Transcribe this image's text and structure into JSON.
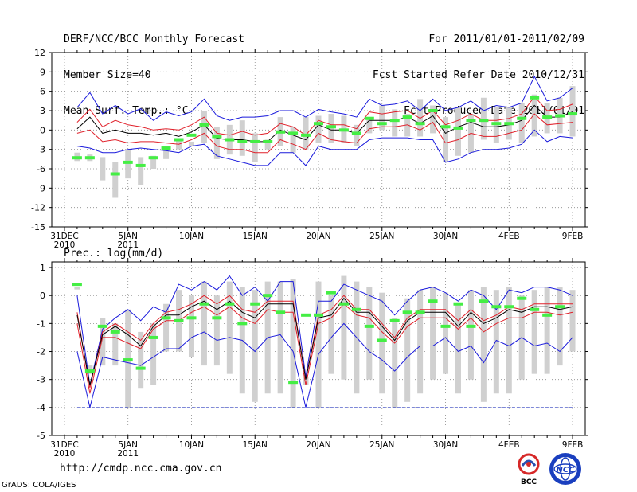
{
  "header": {
    "left": [
      "DERF/NCC/BCC Monthly Forecast",
      "Member Size=40",
      "Mean Surf. Temp.: °C"
    ],
    "right": [
      "For 2011/01/01-2011/02/09",
      "Fcst Started Refer Date 2010/12/31",
      "Fcst Produced Date 2011/01/01"
    ]
  },
  "footer": {
    "url": "http://cmdp.ncc.cma.gov.cn",
    "credit": "GrADS: COLA/IGES",
    "logo_left": "BCC",
    "logo_right": "NCC"
  },
  "colors": {
    "ensemble_mean": "#000000",
    "spread_inner": "#e0202a",
    "spread_outer": "#1a1adc",
    "observed": "#44ee44",
    "box": "#d0d0d0",
    "min_line": "#3040c0"
  },
  "chart_data": [
    {
      "type": "line",
      "title": "Mean Surf. Temp.: °C",
      "x_labels": [
        {
          "day": 0,
          "label": "31DEC",
          "sub": "2010"
        },
        {
          "day": 5,
          "label": "5JAN",
          "sub": "2011"
        },
        {
          "day": 10,
          "label": "10JAN",
          "sub": ""
        },
        {
          "day": 15,
          "label": "15JAN",
          "sub": ""
        },
        {
          "day": 20,
          "label": "20JAN",
          "sub": ""
        },
        {
          "day": 25,
          "label": "25JAN",
          "sub": ""
        },
        {
          "day": 30,
          "label": "30JAN",
          "sub": ""
        },
        {
          "day": 35,
          "label": "4FEB",
          "sub": ""
        },
        {
          "day": 40,
          "label": "9FEB",
          "sub": ""
        }
      ],
      "xlim": [
        -1,
        41
      ],
      "ylim": [
        -15,
        12
      ],
      "yticks": [
        12,
        9,
        6,
        3,
        0,
        -3,
        -6,
        -9,
        -12,
        -15
      ],
      "days": [
        1,
        2,
        3,
        4,
        5,
        6,
        7,
        8,
        9,
        10,
        11,
        12,
        13,
        14,
        15,
        16,
        17,
        18,
        19,
        20,
        21,
        22,
        23,
        24,
        25,
        26,
        27,
        28,
        29,
        30,
        31,
        32,
        33,
        34,
        35,
        36,
        37,
        38,
        39,
        40
      ],
      "series": [
        {
          "name": "max",
          "values": [
            3.5,
            5.8,
            2.5,
            3.8,
            2.5,
            3.3,
            1.5,
            2.8,
            2.2,
            2.8,
            4.8,
            2.2,
            1.5,
            2.0,
            2.0,
            2.2,
            3.0,
            3.0,
            2.0,
            3.2,
            2.8,
            2.5,
            2.0,
            4.8,
            3.8,
            4.0,
            4.5,
            3.0,
            4.8,
            3.0,
            3.5,
            4.5,
            3.0,
            3.8,
            3.5,
            4.2,
            8.3,
            4.5,
            5.0,
            6.5
          ]
        },
        {
          "name": "upper",
          "values": [
            1.2,
            3.2,
            0.5,
            1.5,
            0.8,
            0.5,
            0.0,
            0.2,
            0.0,
            0.8,
            2.0,
            -0.5,
            -0.8,
            -0.2,
            -0.8,
            -0.5,
            1.0,
            0.5,
            -0.8,
            1.5,
            0.8,
            0.8,
            0.2,
            2.8,
            2.5,
            2.8,
            3.0,
            1.8,
            3.0,
            0.8,
            1.5,
            2.5,
            1.5,
            1.5,
            1.8,
            2.5,
            5.2,
            3.0,
            3.2,
            4.0
          ]
        },
        {
          "name": "mean",
          "values": [
            0.2,
            2.0,
            -0.5,
            0.0,
            -0.5,
            -0.5,
            -0.8,
            -0.5,
            -1.0,
            -0.3,
            0.8,
            -1.3,
            -1.5,
            -1.5,
            -1.8,
            -1.8,
            0.0,
            -0.8,
            -1.5,
            0.8,
            0.0,
            0.0,
            -0.5,
            1.5,
            1.5,
            1.5,
            2.0,
            1.0,
            2.2,
            -0.5,
            0.5,
            1.2,
            0.5,
            0.5,
            0.8,
            1.5,
            3.8,
            2.0,
            2.0,
            2.8
          ]
        },
        {
          "name": "lower",
          "values": [
            -0.5,
            0.0,
            -1.8,
            -1.5,
            -2.0,
            -1.8,
            -1.8,
            -2.0,
            -2.2,
            -1.5,
            -0.5,
            -2.5,
            -3.0,
            -3.0,
            -3.5,
            -3.5,
            -1.5,
            -2.2,
            -3.0,
            -0.5,
            -1.5,
            -1.8,
            -2.0,
            0.2,
            0.5,
            0.5,
            0.8,
            0.0,
            1.2,
            -2.0,
            -1.5,
            -0.5,
            -1.0,
            -1.0,
            -0.5,
            0.0,
            2.5,
            0.8,
            1.0,
            1.2
          ]
        },
        {
          "name": "min",
          "values": [
            -2.5,
            -2.8,
            -3.5,
            -3.5,
            -3.0,
            -2.8,
            -3.0,
            -3.2,
            -3.5,
            -2.5,
            -2.2,
            -4.0,
            -4.5,
            -5.0,
            -5.5,
            -5.5,
            -3.5,
            -3.5,
            -5.5,
            -2.5,
            -3.0,
            -3.0,
            -3.0,
            -1.5,
            -1.2,
            -1.2,
            -1.2,
            -1.5,
            -1.5,
            -5.0,
            -4.5,
            -3.5,
            -3.0,
            -3.0,
            -2.8,
            -2.2,
            0.0,
            -1.8,
            -1.0,
            -1.2
          ]
        },
        {
          "name": "box_top",
          "values": [
            -3.5,
            -3.8,
            -4.2,
            -5.0,
            -3.0,
            -4.2,
            -4.0,
            -3.2,
            -1.5,
            -1.8,
            3.0,
            0.5,
            0.8,
            1.5,
            -0.5,
            -1.5,
            2.0,
            0.5,
            2.0,
            2.2,
            2.5,
            2.2,
            0.8,
            1.8,
            3.8,
            3.2,
            2.5,
            4.8,
            3.8,
            2.0,
            3.5,
            2.5,
            5.0,
            3.5,
            3.5,
            4.2,
            5.5,
            4.2,
            5.0,
            6.8
          ]
        },
        {
          "name": "box_bottom",
          "values": [
            -4.8,
            -4.8,
            -7.8,
            -10.5,
            -7.5,
            -8.5,
            -6.0,
            -4.5,
            -3.0,
            -2.5,
            -2.0,
            -4.5,
            -3.8,
            -4.0,
            -5.0,
            -3.0,
            -2.5,
            -3.5,
            -3.0,
            -2.0,
            -2.0,
            -2.0,
            -2.5,
            -0.5,
            0.0,
            -1.0,
            -1.0,
            -1.0,
            -0.5,
            -5.0,
            -4.0,
            -3.5,
            -1.5,
            -2.0,
            -1.5,
            -2.0,
            -1.0,
            -0.5,
            -0.5,
            -1.0
          ]
        },
        {
          "name": "observed",
          "values": [
            -4.3,
            -4.3,
            null,
            -6.8,
            -5.0,
            -5.5,
            -4.3,
            -2.8,
            -1.5,
            -0.8,
            0.8,
            -1.0,
            -1.5,
            -1.8,
            -1.8,
            -1.8,
            -0.3,
            -0.5,
            -0.8,
            1.0,
            0.5,
            0.0,
            -0.5,
            1.8,
            1.0,
            1.5,
            2.0,
            1.0,
            3.0,
            0.5,
            0.3,
            1.5,
            1.5,
            1.0,
            1.0,
            1.8,
            5.0,
            2.0,
            2.2,
            2.5
          ]
        }
      ]
    },
    {
      "type": "line",
      "title": "Prec.: log(mm/d)",
      "x_labels": [
        {
          "day": 0,
          "label": "31DEC",
          "sub": "2010"
        },
        {
          "day": 5,
          "label": "5JAN",
          "sub": "2011"
        },
        {
          "day": 10,
          "label": "10JAN",
          "sub": ""
        },
        {
          "day": 15,
          "label": "15JAN",
          "sub": ""
        },
        {
          "day": 20,
          "label": "20JAN",
          "sub": ""
        },
        {
          "day": 25,
          "label": "25JAN",
          "sub": ""
        },
        {
          "day": 30,
          "label": "30JAN",
          "sub": ""
        },
        {
          "day": 35,
          "label": "4FEB",
          "sub": ""
        },
        {
          "day": 40,
          "label": "9FEB",
          "sub": ""
        }
      ],
      "xlim": [
        -1,
        41
      ],
      "ylim": [
        -5,
        1.2
      ],
      "yticks": [
        1,
        0,
        -1,
        -2,
        -3,
        -4,
        -5
      ],
      "floor_line": -4,
      "days": [
        1,
        2,
        3,
        4,
        5,
        6,
        7,
        8,
        9,
        10,
        11,
        12,
        13,
        14,
        15,
        16,
        17,
        18,
        19,
        20,
        21,
        22,
        23,
        24,
        25,
        26,
        27,
        28,
        29,
        30,
        31,
        32,
        33,
        34,
        35,
        36,
        37,
        38,
        39,
        40
      ],
      "series": [
        {
          "name": "max",
          "values": [
            0.0,
            -3.2,
            -1.2,
            -0.8,
            -0.5,
            -0.9,
            -0.4,
            -0.6,
            0.4,
            0.2,
            0.5,
            0.2,
            0.7,
            0.0,
            0.3,
            -0.2,
            0.5,
            0.5,
            -2.9,
            -0.2,
            -0.2,
            0.4,
            0.2,
            0.0,
            -0.2,
            -0.7,
            -0.2,
            0.2,
            0.3,
            0.1,
            -0.2,
            0.2,
            0.0,
            -0.5,
            0.2,
            0.1,
            0.3,
            0.3,
            0.2,
            0.0
          ]
        },
        {
          "name": "upper",
          "values": [
            -0.6,
            -3.3,
            -1.3,
            -1.0,
            -1.3,
            -1.6,
            -1.0,
            -0.6,
            -0.5,
            -0.3,
            0.0,
            -0.3,
            0.0,
            -0.5,
            -0.6,
            -0.2,
            -0.2,
            -0.2,
            -3.0,
            -0.7,
            -0.5,
            0.0,
            -0.5,
            -0.5,
            -1.0,
            -1.5,
            -0.8,
            -0.5,
            -0.5,
            -0.5,
            -0.9,
            -0.5,
            -0.9,
            -0.7,
            -0.4,
            -0.5,
            -0.3,
            -0.3,
            -0.3,
            -0.3
          ]
        },
        {
          "name": "mean",
          "values": [
            -0.7,
            -3.2,
            -1.4,
            -1.1,
            -1.4,
            -1.8,
            -1.1,
            -0.7,
            -0.7,
            -0.4,
            -0.2,
            -0.5,
            -0.2,
            -0.6,
            -0.8,
            -0.3,
            -0.3,
            -0.3,
            -3.0,
            -0.8,
            -0.7,
            -0.1,
            -0.6,
            -0.6,
            -1.1,
            -1.6,
            -0.9,
            -0.6,
            -0.6,
            -0.6,
            -1.1,
            -0.6,
            -1.0,
            -0.8,
            -0.5,
            -0.6,
            -0.4,
            -0.4,
            -0.5,
            -0.4
          ]
        },
        {
          "name": "lower",
          "values": [
            -1.0,
            -3.5,
            -1.5,
            -1.5,
            -1.7,
            -1.9,
            -1.2,
            -0.9,
            -0.9,
            -0.6,
            -0.4,
            -0.7,
            -0.4,
            -0.8,
            -1.0,
            -0.5,
            -0.6,
            -0.6,
            -3.2,
            -1.0,
            -0.8,
            -0.3,
            -0.7,
            -0.8,
            -1.3,
            -1.7,
            -1.1,
            -0.8,
            -0.8,
            -0.8,
            -1.2,
            -0.8,
            -1.3,
            -1.0,
            -0.8,
            -0.8,
            -0.6,
            -0.6,
            -0.7,
            -0.6
          ]
        },
        {
          "name": "min",
          "values": [
            -2.0,
            -4.0,
            -2.2,
            -2.3,
            -2.4,
            -2.5,
            -2.2,
            -1.9,
            -1.9,
            -1.5,
            -1.3,
            -1.6,
            -1.5,
            -1.6,
            -2.0,
            -1.5,
            -1.4,
            -2.0,
            -4.0,
            -2.1,
            -1.5,
            -1.0,
            -1.5,
            -2.0,
            -2.3,
            -2.7,
            -2.2,
            -1.8,
            -1.8,
            -1.5,
            -2.0,
            -1.8,
            -2.4,
            -1.6,
            -1.8,
            -1.5,
            -1.8,
            -1.7,
            -2.0,
            -1.5
          ]
        },
        {
          "name": "box_top",
          "values": [
            0.3,
            -2.5,
            -0.8,
            -1.0,
            -0.5,
            -1.3,
            -1.0,
            -0.3,
            0.2,
            0.0,
            0.5,
            0.0,
            0.5,
            0.3,
            0.2,
            0.5,
            0.5,
            0.6,
            -2.9,
            0.5,
            0.0,
            0.7,
            0.5,
            0.3,
            0.1,
            -0.8,
            -0.1,
            0.2,
            0.3,
            0.1,
            -0.3,
            0.2,
            0.3,
            0.2,
            0.3,
            0.0,
            0.2,
            0.3,
            0.3,
            0.2
          ]
        },
        {
          "name": "box_bottom",
          "values": [
            0.3,
            -2.8,
            -2.5,
            -2.5,
            -4.0,
            -3.3,
            -3.2,
            -2.0,
            -2.0,
            -2.2,
            -2.5,
            -2.5,
            -2.8,
            -3.5,
            -3.8,
            -3.5,
            -3.5,
            -4.0,
            -3.2,
            -4.0,
            -2.8,
            -3.0,
            -3.5,
            -3.0,
            -3.5,
            -4.0,
            -3.8,
            -3.5,
            -3.0,
            -2.8,
            -3.5,
            -3.0,
            -3.8,
            -3.5,
            -3.5,
            -3.0,
            -2.8,
            -2.8,
            -2.5,
            -2.0
          ]
        },
        {
          "name": "observed",
          "values": [
            0.4,
            -2.7,
            -1.1,
            -1.3,
            -2.3,
            -2.6,
            -1.5,
            -0.8,
            -0.9,
            -0.8,
            -0.3,
            -0.8,
            -0.3,
            -1.0,
            -0.3,
            0.0,
            -0.6,
            -3.1,
            -0.7,
            -0.7,
            0.1,
            -0.3,
            -0.5,
            -1.1,
            -1.6,
            -0.9,
            -0.6,
            -0.6,
            -0.2,
            -1.1,
            -0.3,
            -1.1,
            -0.2,
            -0.4,
            -0.4,
            -0.1,
            -0.5,
            -0.7,
            -0.4,
            null
          ]
        }
      ]
    }
  ]
}
